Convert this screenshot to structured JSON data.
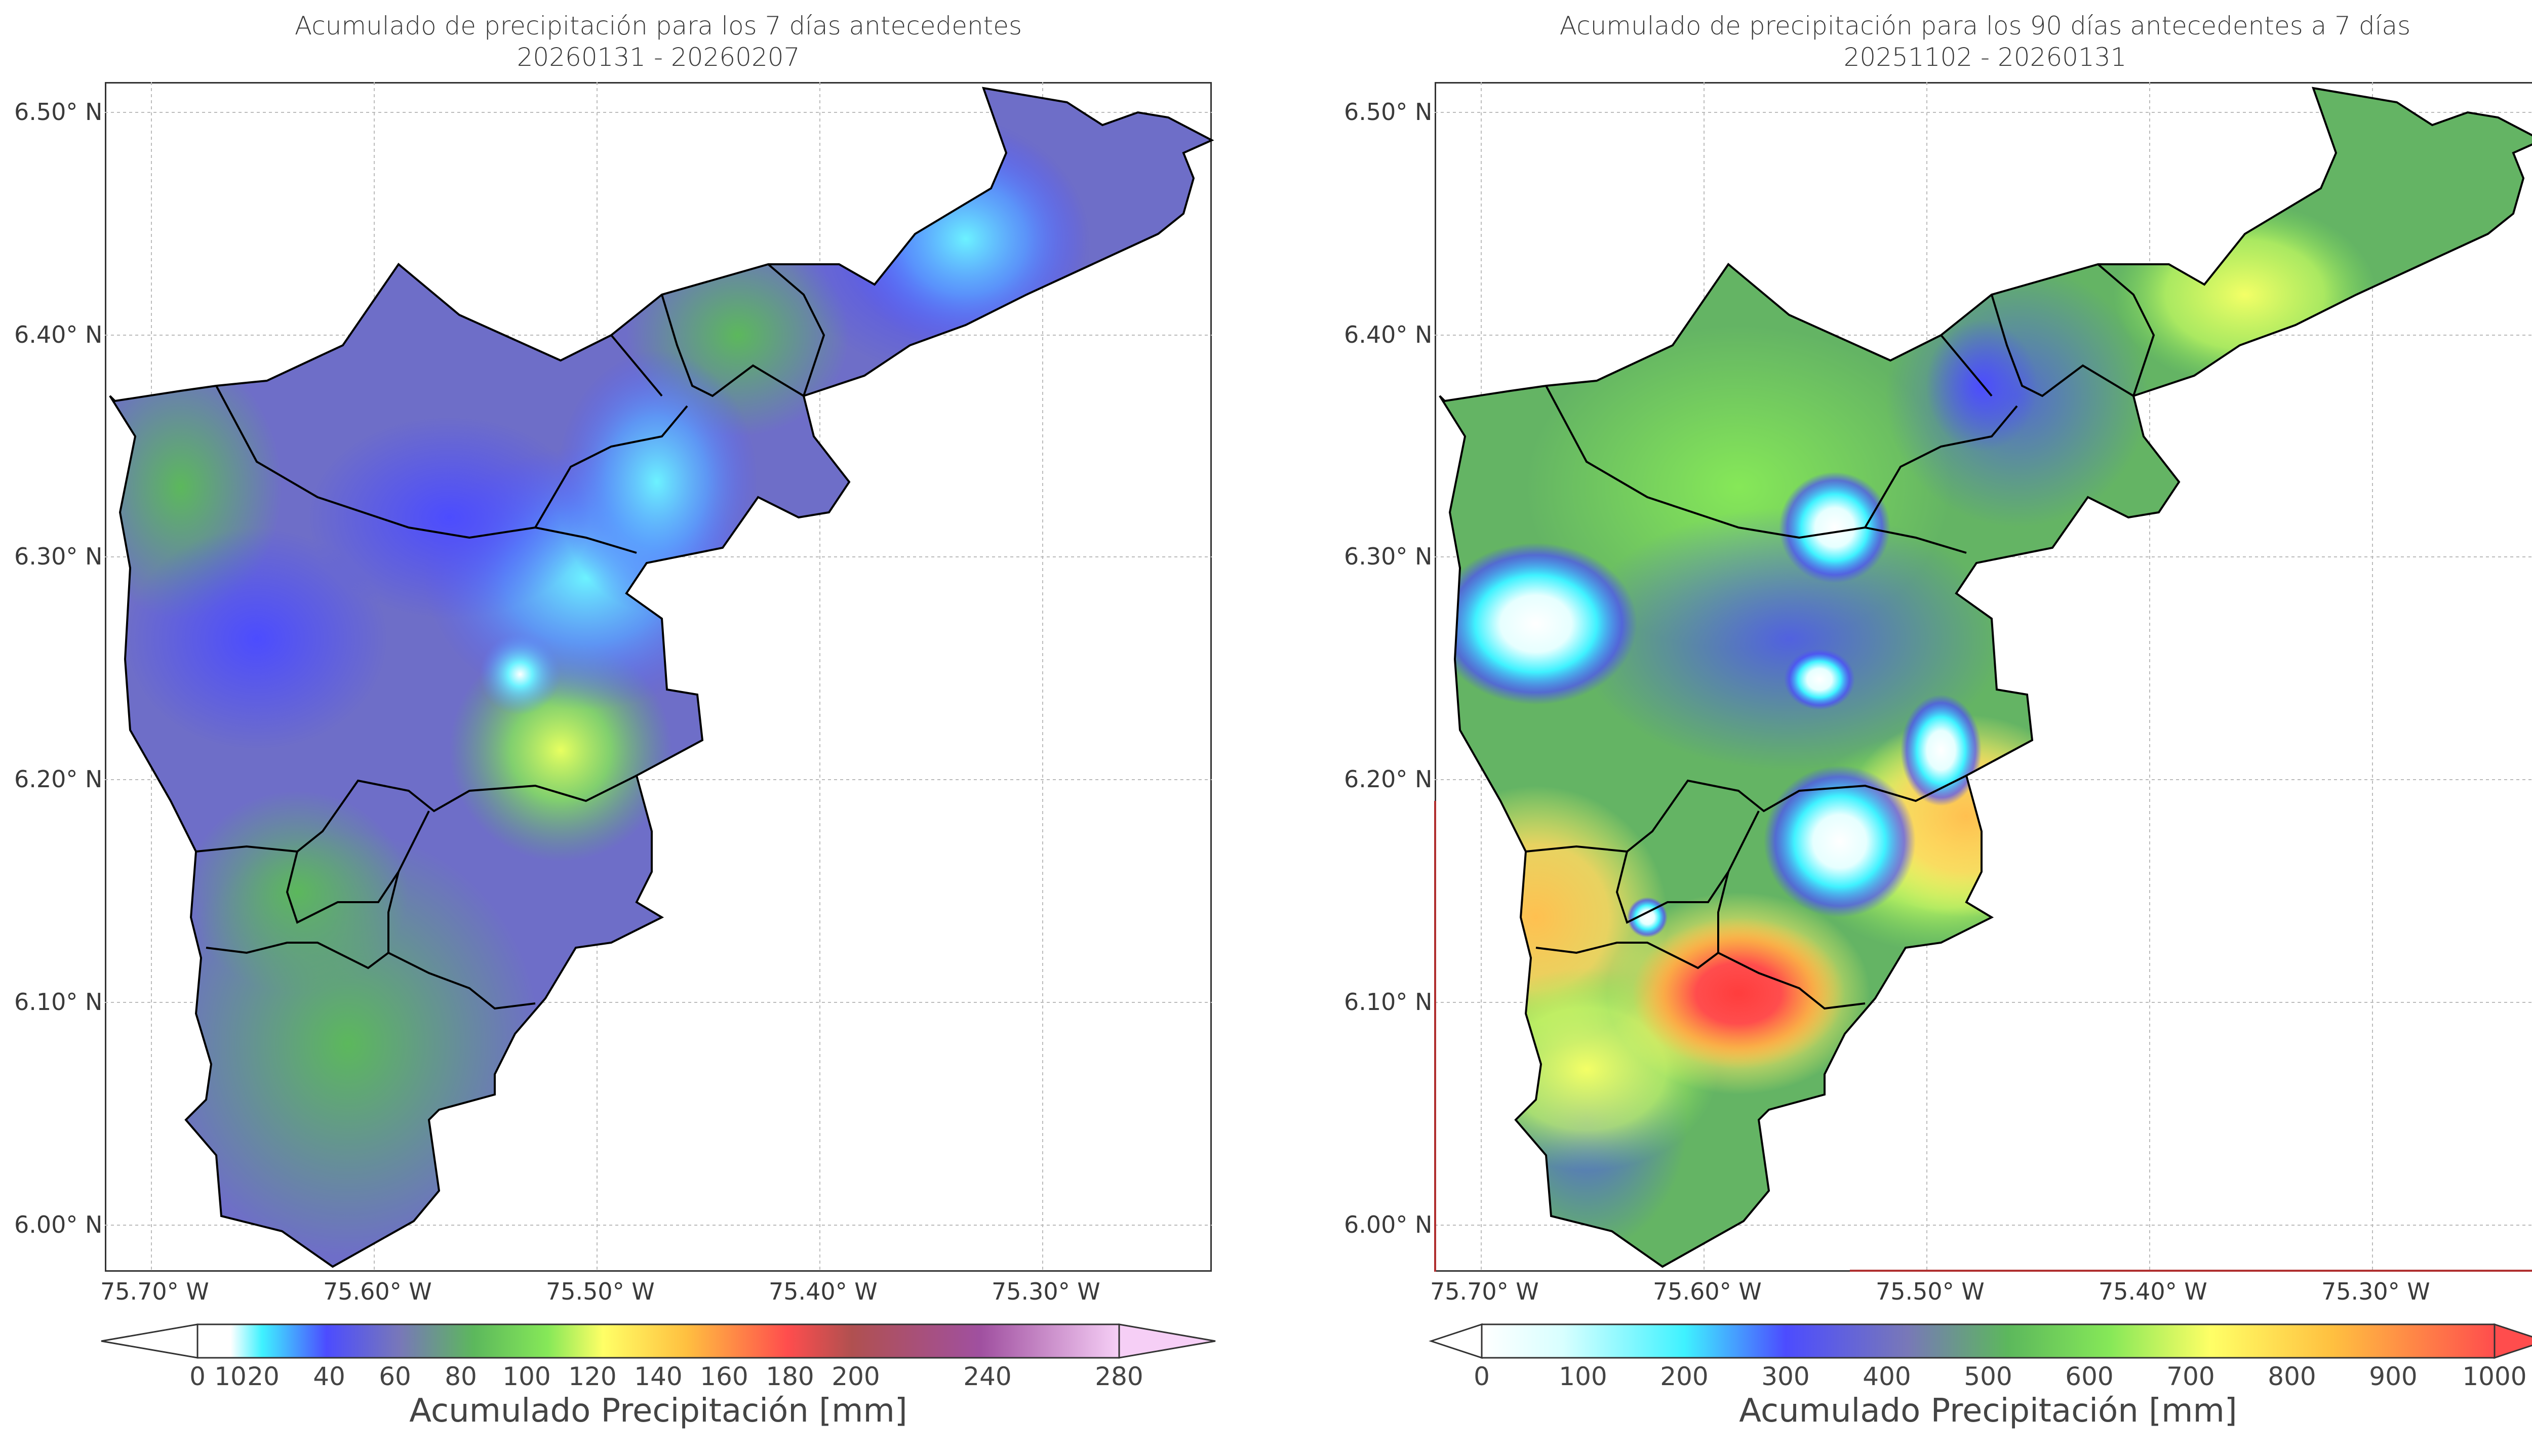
{
  "panels": [
    {
      "title_line1": "Acumulado de precipitación para los 7 días antecedentes",
      "title_line2": "20260131 - 20260207",
      "lat_labels": [
        "6.50° N",
        "6.40° N",
        "6.30° N",
        "6.20° N",
        "6.10° N",
        "6.00° N"
      ],
      "lon_labels": [
        "75.70° W",
        "75.60° W",
        "75.50° W",
        "75.40° W",
        "75.30° W"
      ],
      "colorbar": {
        "label": "Acumulado Precipitación [mm]",
        "ticks": [
          "0",
          "10",
          "20",
          "40",
          "60",
          "80",
          "100",
          "120",
          "140",
          "160",
          "180",
          "200",
          "240",
          "280"
        ],
        "tick_values": [
          0,
          10,
          20,
          40,
          60,
          80,
          100,
          120,
          140,
          160,
          180,
          200,
          240,
          280
        ],
        "range": [
          0,
          280
        ],
        "extend": "both"
      }
    },
    {
      "title_line1": "Acumulado de precipitación para los 90 días antecedentes a 7 días",
      "title_line2": "20251102 - 20260131",
      "lat_labels": [
        "6.50° N",
        "6.40° N",
        "6.30° N",
        "6.20° N",
        "6.10° N",
        "6.00° N"
      ],
      "lon_labels": [
        "75.70° W",
        "75.60° W",
        "75.50° W",
        "75.40° W",
        "75.30° W"
      ],
      "colorbar": {
        "label": "Acumulado Precipitación [mm]",
        "ticks": [
          "0",
          "100",
          "200",
          "300",
          "400",
          "500",
          "600",
          "700",
          "800",
          "900",
          "1000"
        ],
        "tick_values": [
          0,
          100,
          200,
          300,
          400,
          500,
          600,
          700,
          800,
          900,
          1000
        ],
        "range": [
          0,
          1000
        ],
        "extend": "both"
      }
    }
  ],
  "colors": {
    "cbar1_stops": [
      "#ffffff",
      "#ffffff",
      "#3ff2ff",
      "#4c4cff",
      "#7878b8",
      "#5cb85c",
      "#86e858",
      "#ffff66",
      "#ffc040",
      "#ff4d4d",
      "#b05050",
      "#a050a0",
      "#f6cff6"
    ],
    "cbar2_stops": [
      "#ffffff",
      "#d8ffff",
      "#3ff2ff",
      "#4c4cff",
      "#7878b8",
      "#5cb85c",
      "#86e858",
      "#ffff66",
      "#ffc040",
      "#ff4d4d"
    ]
  }
}
